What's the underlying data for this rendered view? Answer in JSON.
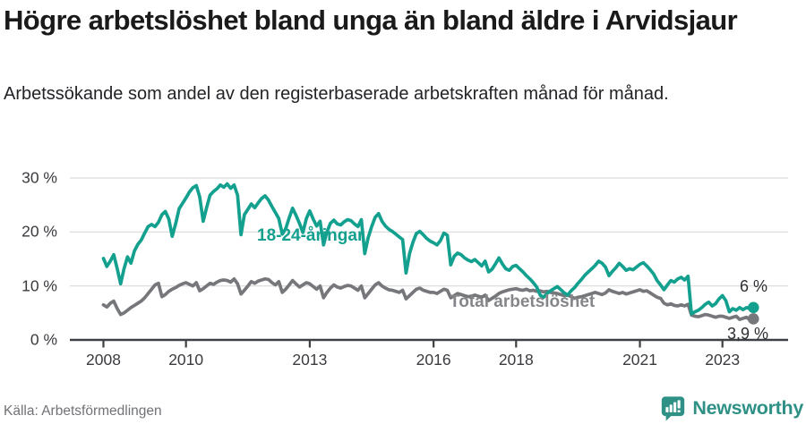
{
  "header": {
    "title": "Högre arbetslöshet bland unga än bland äldre i Arvidsjaur",
    "subtitle": "Arbetssökande som andel av den registerbaserade arbetskraften månad för månad."
  },
  "footer": {
    "source": "Källa: Arbetsförmedlingen",
    "brand": "Newsworthy",
    "brand_icon": "newsworthy-pin-barchart-icon"
  },
  "colors": {
    "accent_teal": "#13a08e",
    "line_gray": "#76777b",
    "label_gray": "#85868a",
    "grid": "#d9d9d9",
    "axis": "#3f4044",
    "text_dark": "#2e2f33",
    "brand_teal": "#2f9086"
  },
  "chart_data": {
    "type": "line",
    "title": "Högre arbetslöshet bland unga än bland äldre i Arvidsjaur",
    "subtitle": "Arbetssökande som andel av den registerbaserade arbetskraften månad för månad.",
    "x_frequency": "monthly",
    "x_start": "2008-01",
    "x_end": "2023-10",
    "xlim": [
      2008,
      2023.83
    ],
    "ylim": [
      0,
      32
    ],
    "grid": "horizontal",
    "legend_position": "inline-annotations",
    "y_ticks": [
      {
        "label": "30 %",
        "value": 30
      },
      {
        "label": "20 %",
        "value": 20
      },
      {
        "label": "10 %",
        "value": 10
      },
      {
        "label": "0 %",
        "value": 0
      }
    ],
    "x_ticks": [
      {
        "label": "2008",
        "year": 2008
      },
      {
        "label": "2010",
        "year": 2010
      },
      {
        "label": "2013",
        "year": 2013
      },
      {
        "label": "2016",
        "year": 2016
      },
      {
        "label": "2018",
        "year": 2018
      },
      {
        "label": "2021",
        "year": 2021
      },
      {
        "label": "2023",
        "year": 2023
      }
    ],
    "series": [
      {
        "name": "Total arbetslöshet",
        "color": "#76777b",
        "end_label": "3,9 %",
        "end_value": 3.9,
        "values": [
          6.5,
          6.1,
          6.8,
          7.2,
          5.8,
          4.7,
          5.0,
          5.5,
          6.0,
          6.4,
          6.8,
          7.2,
          7.8,
          8.6,
          9.4,
          10.2,
          10.5,
          8.0,
          8.4,
          9.0,
          9.4,
          9.7,
          10.1,
          10.4,
          10.6,
          10.3,
          10.0,
          10.6,
          9.1,
          9.5,
          10.0,
          10.5,
          10.3,
          10.7,
          11.0,
          11.1,
          11.0,
          10.7,
          11.3,
          10.4,
          8.5,
          9.2,
          10.0,
          10.8,
          10.5,
          10.9,
          11.1,
          11.3,
          11.2,
          10.6,
          10.2,
          10.8,
          8.8,
          9.4,
          10.2,
          11.0,
          10.4,
          9.8,
          10.2,
          10.6,
          10.4,
          9.9,
          9.4,
          10.0,
          7.8,
          8.8,
          9.6,
          10.2,
          9.8,
          9.6,
          9.9,
          10.1,
          10.0,
          9.6,
          9.2,
          10.0,
          7.8,
          8.6,
          9.4,
          10.2,
          10.6,
          10.0,
          9.6,
          9.3,
          9.2,
          9.0,
          8.8,
          9.2,
          7.6,
          8.2,
          8.8,
          9.4,
          9.6,
          9.2,
          9.0,
          8.8,
          8.8,
          8.6,
          9.0,
          9.4,
          9.2,
          7.8,
          8.2,
          8.6,
          8.4,
          8.2,
          8.0,
          8.1,
          8.3,
          8.1,
          7.9,
          8.3,
          7.3,
          7.7,
          8.1,
          8.6,
          8.9,
          9.1,
          9.3,
          9.4,
          9.5,
          9.3,
          9.2,
          9.4,
          9.1,
          9.2,
          9.0,
          9.1,
          8.9,
          9.0,
          8.8,
          8.7,
          8.6,
          8.4,
          8.2,
          8.3,
          8.0,
          7.7,
          7.9,
          8.0,
          8.2,
          8.4,
          8.6,
          8.8,
          8.6,
          8.4,
          8.7,
          9.3,
          9.0,
          8.8,
          8.6,
          8.8,
          8.5,
          8.7,
          8.9,
          9.1,
          9.3,
          9.0,
          9.1,
          8.7,
          8.3,
          7.9,
          7.7,
          6.8,
          6.5,
          6.7,
          6.4,
          6.3,
          6.5,
          6.3,
          6.6,
          4.6,
          4.4,
          4.3,
          4.5,
          4.7,
          4.6,
          4.4,
          4.2,
          4.4,
          4.4,
          4.2,
          4.0,
          4.2,
          4.4,
          3.8,
          4.0,
          4.2,
          3.7,
          3.9
        ]
      },
      {
        "name": "18-24-åringar",
        "color": "#13a08e",
        "end_label": "6 %",
        "end_value": 6.0,
        "values": [
          15.1,
          13.6,
          14.6,
          15.8,
          13.2,
          10.4,
          13.2,
          15.4,
          14.2,
          16.5,
          17.7,
          18.5,
          19.8,
          21.0,
          21.4,
          21.0,
          21.8,
          23.2,
          23.8,
          22.4,
          19.2,
          21.5,
          24.3,
          25.3,
          26.3,
          27.4,
          28.2,
          28.6,
          26.5,
          22.0,
          24.5,
          26.8,
          27.5,
          28.0,
          28.7,
          28.3,
          28.9,
          28.1,
          28.7,
          26.8,
          19.5,
          23.2,
          24.2,
          25.2,
          24.5,
          25.4,
          26.2,
          26.7,
          25.9,
          24.7,
          23.6,
          22.5,
          19.6,
          20.6,
          22.6,
          24.4,
          23.1,
          21.6,
          19.9,
          22.5,
          23.9,
          22.4,
          21.1,
          22.0,
          17.6,
          20.0,
          21.6,
          22.2,
          21.5,
          21.3,
          21.9,
          22.3,
          22.1,
          21.5,
          21.0,
          22.3,
          16.0,
          19.0,
          21.0,
          22.7,
          23.4,
          22.0,
          21.1,
          20.5,
          20.1,
          19.6,
          19.1,
          18.6,
          12.4,
          16.0,
          18.1,
          19.7,
          20.1,
          19.5,
          18.8,
          18.3,
          18.0,
          17.6,
          18.4,
          19.8,
          19.4,
          13.9,
          15.5,
          16.1,
          15.8,
          15.2,
          14.8,
          14.5,
          14.9,
          14.3,
          13.7,
          14.6,
          12.6,
          13.1,
          14.1,
          15.2,
          14.1,
          13.2,
          12.9,
          13.6,
          13.8,
          13.2,
          12.6,
          11.9,
          11.3,
          10.6,
          9.8,
          8.3,
          7.9,
          8.6,
          9.1,
          9.5,
          9.9,
          9.3,
          8.7,
          8.3,
          9.1,
          9.7,
          10.5,
          11.2,
          12.0,
          12.6,
          13.2,
          13.8,
          14.6,
          14.2,
          13.5,
          11.9,
          12.7,
          13.4,
          14.2,
          13.6,
          12.9,
          13.2,
          13.0,
          13.5,
          14.0,
          14.3,
          13.7,
          13.0,
          12.2,
          11.0,
          10.2,
          9.3,
          10.2,
          11.0,
          10.7,
          11.3,
          11.6,
          11.1,
          11.8,
          4.8,
          5.2,
          5.5,
          6.0,
          6.6,
          7.0,
          6.3,
          6.7,
          7.6,
          8.2,
          7.3,
          5.2,
          5.8,
          5.5,
          6.0,
          5.6,
          6.0,
          5.8,
          6.0
        ]
      }
    ]
  }
}
